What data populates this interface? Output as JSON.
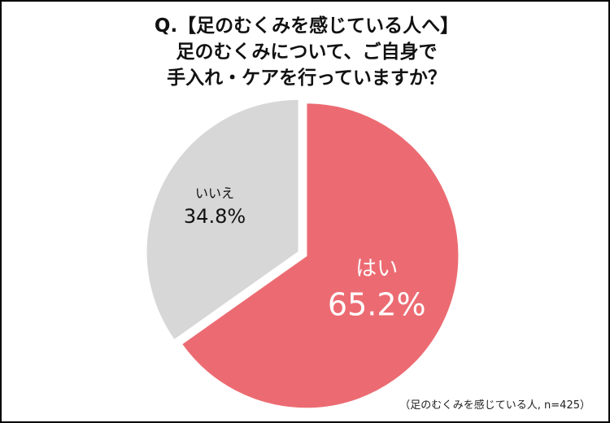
{
  "title_lines": [
    "Q.【足のむくみを感じている人へ】",
    "足のむくみについて、ご自身で",
    "手入れ・ケアを行っていますか？"
  ],
  "note": "（足のむくみを感じている人, n=425）",
  "colors": {
    "yes": "#ec6b72",
    "no": "#d7d7d7",
    "border": "#000000"
  },
  "chart_data": {
    "type": "pie",
    "slices": [
      {
        "label": "はい",
        "value": 65.2,
        "display": "65.2%",
        "color": "#ec6b72"
      },
      {
        "label": "いいえ",
        "value": 34.8,
        "display": "34.8%",
        "color": "#d7d7d7"
      }
    ],
    "start": "12 o'clock",
    "direction": "clockwise"
  }
}
